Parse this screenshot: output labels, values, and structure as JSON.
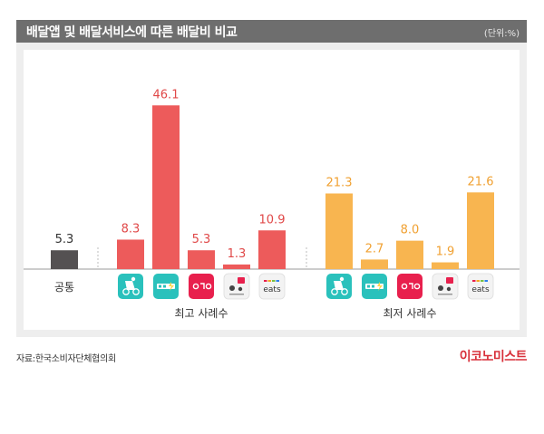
{
  "header": {
    "title": "배달앱 및 배달서비스에 따른 배달비 비교",
    "unit": "(단위:%)"
  },
  "footer": {
    "source": "자료:한국소비자단체협의회",
    "brand": "이코노미스트"
  },
  "colors": {
    "common": "#545152",
    "highest": "#ed5b5b",
    "lowest": "#f8b550",
    "label_common": "#333333",
    "label_highest": "#e04848",
    "label_lowest": "#f0a030"
  },
  "chart_data": {
    "type": "bar",
    "title": "배달앱 및 배달서비스에 따른 배달비 비교",
    "unit": "(단위:%)",
    "ylim": [
      0,
      50
    ],
    "grid": false,
    "groups": [
      {
        "name": "",
        "category_label": "공통",
        "color": "#545152",
        "bars": [
          {
            "icon": "",
            "value": 5.3
          }
        ]
      },
      {
        "name": "최고 사례수",
        "color": "#ed5b5b",
        "bars": [
          {
            "icon": "baemin-icon",
            "value": 8.3
          },
          {
            "icon": "baemin1-icon",
            "value": 46.1
          },
          {
            "icon": "yogiyo-icon",
            "value": 5.3
          },
          {
            "icon": "wemakeprice-icon",
            "value": 1.3
          },
          {
            "icon": "coupang-eats-icon",
            "value": 10.9
          }
        ]
      },
      {
        "name": "최저 사례수",
        "color": "#f8b550",
        "bars": [
          {
            "icon": "baemin-icon",
            "value": 21.3
          },
          {
            "icon": "baemin1-icon",
            "value": 2.7
          },
          {
            "icon": "yogiyo-icon",
            "value": 8.0
          },
          {
            "icon": "wemakeprice-icon",
            "value": 1.9
          },
          {
            "icon": "coupang-eats-icon",
            "value": 21.6
          }
        ]
      }
    ]
  }
}
